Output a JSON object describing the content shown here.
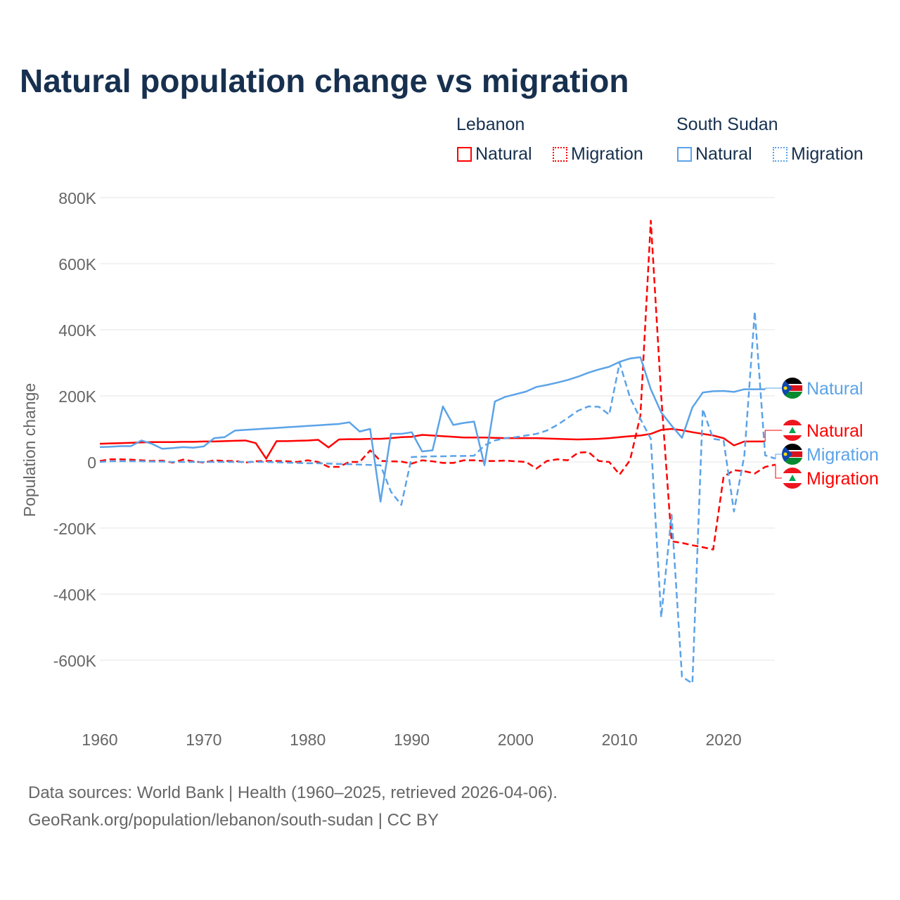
{
  "title": "Natural population change vs migration",
  "legend": {
    "groups": [
      {
        "name": "Lebanon",
        "items": [
          "Natural",
          "Migration"
        ],
        "color": "#ff0000"
      },
      {
        "name": "South Sudan",
        "items": [
          "Natural",
          "Migration"
        ],
        "color": "#5ba3e8"
      }
    ]
  },
  "footer": {
    "line1": "Data sources: World Bank | Health (1960–2025, retrieved 2026-04-06).",
    "line2": "GeoRank.org/population/lebanon/south-sudan | CC BY"
  },
  "chart_data": {
    "type": "line",
    "title": "Natural population change vs migration",
    "xlabel": "",
    "ylabel": "Population change",
    "xlim": [
      1960,
      2025
    ],
    "ylim": [
      -700000,
      800000
    ],
    "x_ticks": [
      1960,
      1970,
      1980,
      1990,
      2000,
      2010,
      2020
    ],
    "y_ticks": [
      800000,
      600000,
      400000,
      200000,
      0,
      -200000,
      -400000,
      -600000
    ],
    "y_tick_labels": [
      "800K",
      "600K",
      "400K",
      "200K",
      "0",
      "-200K",
      "-400K",
      "-600K"
    ],
    "grid": true,
    "series": [
      {
        "name": "Lebanon Natural",
        "end_label": "Natural",
        "color": "#ff0000",
        "dash": false,
        "start": 1960,
        "values": [
          55,
          56,
          57,
          58,
          59,
          60,
          60,
          60,
          61,
          61,
          62,
          62,
          63,
          64,
          65,
          57,
          10,
          63,
          63,
          64,
          65,
          67,
          44,
          68,
          69,
          69,
          70,
          70,
          72,
          75,
          76,
          82,
          80,
          78,
          76,
          74,
          74,
          74,
          73,
          72,
          72,
          72,
          72,
          71,
          70,
          69,
          68,
          69,
          70,
          72,
          75,
          78,
          80,
          85,
          97,
          100,
          96,
          90,
          85,
          80,
          72,
          50,
          62,
          62,
          62
        ]
      },
      {
        "name": "Lebanon Migration",
        "end_label": "Migration",
        "color": "#ff0000",
        "dash": true,
        "start": 1960,
        "values": [
          3,
          8,
          8,
          7,
          5,
          3,
          4,
          -2,
          7,
          2,
          -2,
          5,
          3,
          3,
          -2,
          2,
          3,
          3,
          2,
          0,
          5,
          0,
          -15,
          -15,
          0,
          0,
          35,
          3,
          2,
          1,
          -5,
          5,
          2,
          -3,
          -3,
          5,
          5,
          3,
          3,
          4,
          2,
          0,
          -20,
          3,
          8,
          5,
          28,
          30,
          3,
          0,
          -38,
          5,
          140,
          730,
          200,
          -240,
          -245,
          -252,
          -258,
          -265,
          -45,
          -25,
          -28,
          -35,
          -15,
          -8
        ]
      },
      {
        "name": "South Sudan Natural",
        "end_label": "Natural",
        "color": "#5ba3e8",
        "dash": false,
        "start": 1960,
        "values": [
          45,
          46,
          48,
          48,
          65,
          55,
          40,
          42,
          45,
          43,
          47,
          72,
          75,
          95,
          97,
          99,
          101,
          103,
          105,
          107,
          109,
          111,
          113,
          115,
          120,
          92,
          100,
          -120,
          85,
          85,
          90,
          32,
          35,
          168,
          112,
          118,
          122,
          -10,
          183,
          197,
          205,
          213,
          227,
          233,
          240,
          248,
          258,
          270,
          280,
          288,
          303,
          313,
          317,
          220,
          150,
          110,
          73,
          165,
          210,
          214,
          215,
          212,
          220,
          220,
          220
        ],
        "start_override": 1960
      },
      {
        "name": "South Sudan Migration",
        "end_label": "Migration",
        "color": "#5ba3e8",
        "dash": true,
        "start": 1960,
        "values": [
          0,
          2,
          2,
          2,
          2,
          1,
          1,
          0,
          0,
          0,
          0,
          0,
          0,
          0,
          0,
          0,
          0,
          -1,
          -2,
          -3,
          -4,
          -4,
          -5,
          -6,
          -7,
          -8,
          -9,
          -10,
          -90,
          -130,
          15,
          16,
          17,
          17,
          18,
          18,
          19,
          50,
          65,
          72,
          75,
          80,
          85,
          95,
          112,
          133,
          155,
          168,
          167,
          143,
          300,
          195,
          130,
          70,
          -470,
          -160,
          -650,
          -670,
          160,
          70,
          65,
          -150,
          20,
          455,
          20,
          10
        ]
      }
    ]
  }
}
